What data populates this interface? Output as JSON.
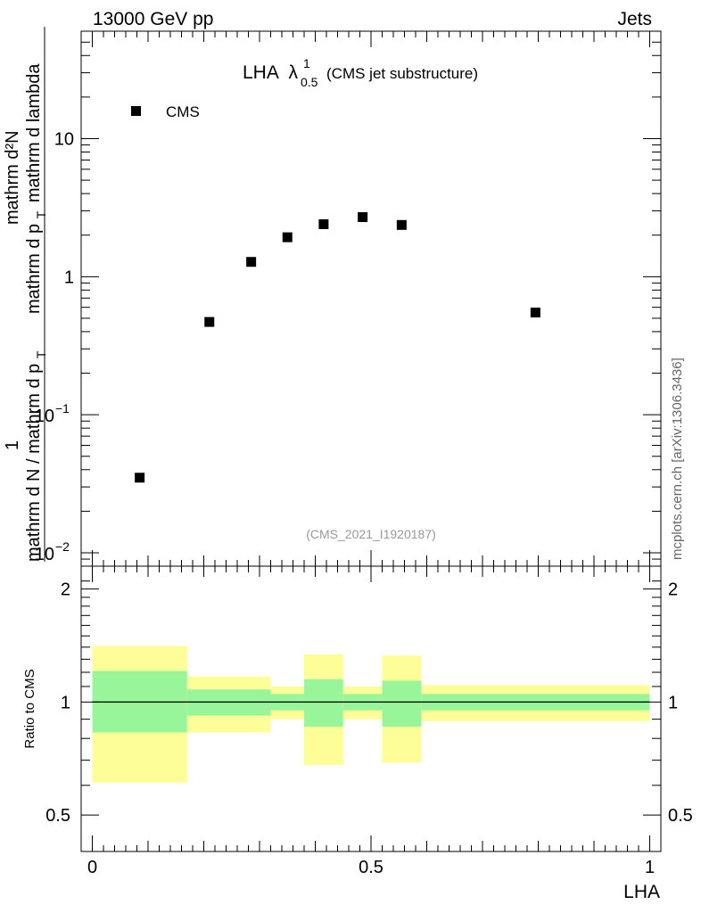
{
  "header": {
    "left": "13000 GeV pp",
    "right": "Jets"
  },
  "side_label": "mcplots.cern.ch [arXiv:1306.3436]",
  "analysis_id": "(CMS_2021_I1920187)",
  "chart_data": [
    {
      "type": "scatter",
      "title_main": "LHA",
      "title_symbol": "λ",
      "title_sup": "1",
      "title_sub": "0.5",
      "title_suffix": "(CMS jet substructure)",
      "ylabel_fraction_top": "1",
      "ylabel_denominator": "mathrm d N / mathrm d p",
      "ylabel_denominator_sub": "T",
      "ylabel_numerator": "mathrm d²N",
      "ylabel_numerator_denominator": "mathrm d p",
      "ylabel_numerator_sub": "T",
      "ylabel_numerator_tail": "mathrm d lambda",
      "yscale": "log",
      "ylim": [
        0.008,
        60
      ],
      "xlim": [
        -0.02,
        1.02
      ],
      "legend": [
        {
          "name": "CMS",
          "marker": "square",
          "color": "#000000"
        }
      ],
      "y_tick_labels": [
        {
          "value": 10,
          "label": "10"
        },
        {
          "value": 1,
          "label": "1"
        },
        {
          "value": 0.1,
          "base": "10",
          "exp": "−1"
        },
        {
          "value": 0.01,
          "base": "10",
          "exp": "−2"
        }
      ],
      "series": [
        {
          "name": "CMS",
          "x": [
            0.085,
            0.21,
            0.285,
            0.35,
            0.415,
            0.485,
            0.555,
            0.795
          ],
          "y": [
            0.035,
            0.47,
            1.28,
            1.93,
            2.4,
            2.7,
            2.37,
            0.55
          ]
        }
      ]
    },
    {
      "type": "area",
      "ylabel": "Ratio to CMS",
      "xlabel": "LHA",
      "ylim": [
        0.4,
        2.3
      ],
      "xlim": [
        -0.02,
        1.02
      ],
      "y_tick_labels": [
        {
          "value": 0.5,
          "label": "0.5"
        },
        {
          "value": 1,
          "label": "1"
        },
        {
          "value": 2,
          "label": "2"
        }
      ],
      "x_tick_labels": [
        {
          "value": 0,
          "label": "0"
        },
        {
          "value": 0.5,
          "label": "0.5"
        },
        {
          "value": 1,
          "label": "1"
        }
      ],
      "reference_line": 1,
      "bins": [
        {
          "x0": 0.0,
          "x1": 0.17,
          "green": [
            0.83,
            1.21
          ],
          "yellow": [
            0.61,
            1.41
          ]
        },
        {
          "x0": 0.17,
          "x1": 0.32,
          "green": [
            0.92,
            1.08
          ],
          "yellow": [
            0.83,
            1.17
          ]
        },
        {
          "x0": 0.32,
          "x1": 0.38,
          "green": [
            0.95,
            1.05
          ],
          "yellow": [
            0.9,
            1.1
          ]
        },
        {
          "x0": 0.38,
          "x1": 0.45,
          "green": [
            0.86,
            1.15
          ],
          "yellow": [
            0.68,
            1.34
          ]
        },
        {
          "x0": 0.45,
          "x1": 0.52,
          "green": [
            0.95,
            1.05
          ],
          "yellow": [
            0.9,
            1.1
          ]
        },
        {
          "x0": 0.52,
          "x1": 0.59,
          "green": [
            0.86,
            1.14
          ],
          "yellow": [
            0.69,
            1.33
          ]
        },
        {
          "x0": 0.59,
          "x1": 1.0,
          "green": [
            0.95,
            1.05
          ],
          "yellow": [
            0.89,
            1.11
          ]
        }
      ],
      "colors": {
        "green": "#99f599",
        "yellow": "#fefe99"
      }
    }
  ]
}
